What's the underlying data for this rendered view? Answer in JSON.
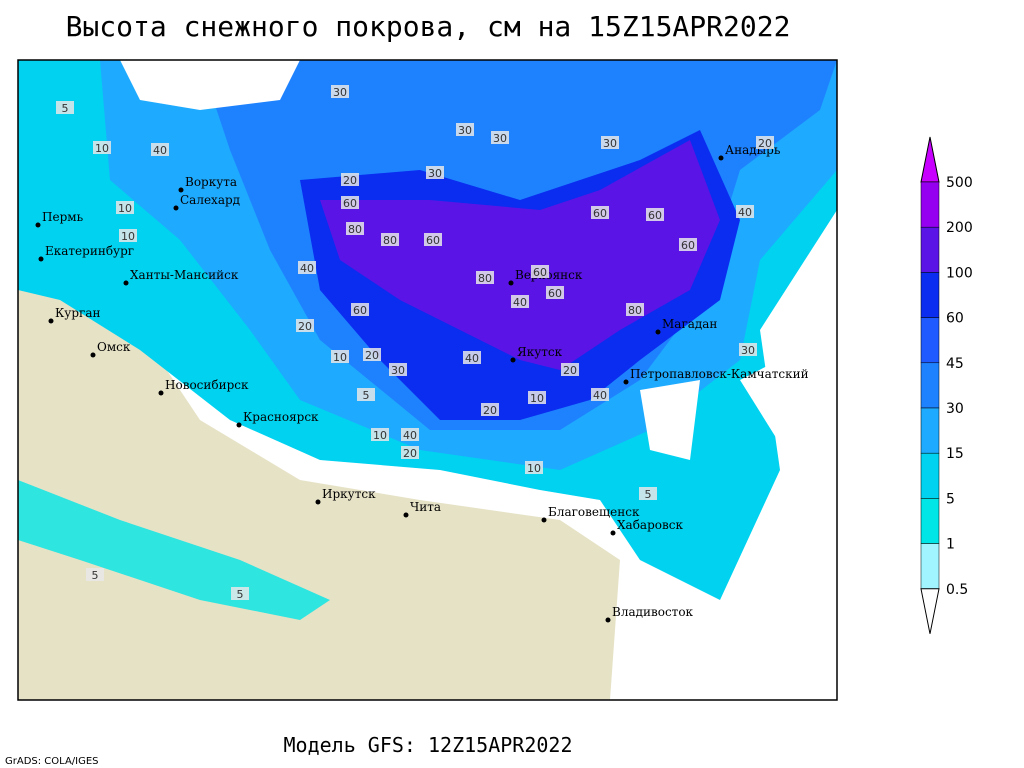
{
  "title": "Высота снежного покрова, см на 15Z15APR2022",
  "footer": "Модель GFS: 12Z15APR2022",
  "credit": "GrADS: COLA/IGES",
  "cities": [
    "Воркута",
    "Салехард",
    "Пермь",
    "Екатеринбург",
    "Ханты-Мансийск",
    "Курган",
    "Омск",
    "Новосибирск",
    "Красноярск",
    "Иркутск",
    "Чита",
    "Верхоянск",
    "Якутск",
    "Магадан",
    "Анадырь",
    "Петропавловск-Камчатский",
    "Благовещенск",
    "Хабаровск",
    "Владивосток"
  ],
  "contour_labels": [
    30,
    30,
    30,
    30,
    30,
    20,
    5,
    10,
    40,
    20,
    10,
    10,
    60,
    80,
    80,
    60,
    80,
    60,
    60,
    40,
    60,
    80,
    60,
    60,
    40,
    20,
    10,
    20,
    30,
    40,
    20,
    10,
    40,
    20,
    10,
    5,
    10,
    5,
    5,
    5,
    30,
    40,
    60,
    40,
    20
  ],
  "legend": {
    "levels": [
      0.5,
      1,
      5,
      15,
      30,
      45,
      60,
      100,
      200,
      500
    ],
    "colors": [
      "#ffffff",
      "#a0f5ff",
      "#00e6e6",
      "#00d2f0",
      "#1eaaff",
      "#1e82ff",
      "#1e5aff",
      "#0a2df0",
      "#5a14e6",
      "#9600f0",
      "#c800ff"
    ]
  }
}
